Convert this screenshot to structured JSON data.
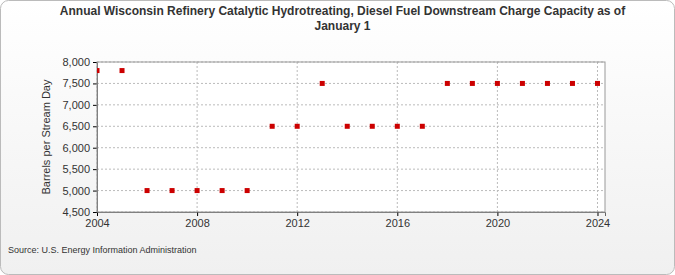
{
  "chart_data": {
    "type": "scatter",
    "title": "Annual Wisconsin Refinery Catalytic Hydrotreating, Diesel Fuel Downstream Charge Capacity as of January 1",
    "y_label": "Barrels per Stream Day",
    "source": "Source: U.S. Energy Information Administration",
    "x": [
      2004,
      2005,
      2006,
      2007,
      2008,
      2009,
      2010,
      2011,
      2012,
      2013,
      2014,
      2015,
      2016,
      2017,
      2018,
      2019,
      2020,
      2021,
      2022,
      2023,
      2024
    ],
    "values": [
      7800,
      7800,
      5000,
      5000,
      5000,
      5000,
      5000,
      6500,
      6500,
      7500,
      6500,
      6500,
      6500,
      6500,
      7500,
      7500,
      7500,
      7500,
      7500,
      7500,
      7500
    ],
    "color": "#cc0000",
    "marker": "square",
    "xlim": [
      2004,
      2024.3
    ],
    "xticks": [
      2004,
      2008,
      2012,
      2016,
      2020,
      2024
    ],
    "ylim": [
      4500,
      8000
    ],
    "yticks": [
      {
        "value": 4500,
        "label": "4,500"
      },
      {
        "value": 5000,
        "label": "5,000"
      },
      {
        "value": 5500,
        "label": "5,500"
      },
      {
        "value": 6000,
        "label": "6,000"
      },
      {
        "value": 6500,
        "label": "6,500"
      },
      {
        "value": 7000,
        "label": "7,000"
      },
      {
        "value": 7500,
        "label": "7,500"
      },
      {
        "value": 8000,
        "label": "8,000"
      }
    ],
    "grid": true
  }
}
